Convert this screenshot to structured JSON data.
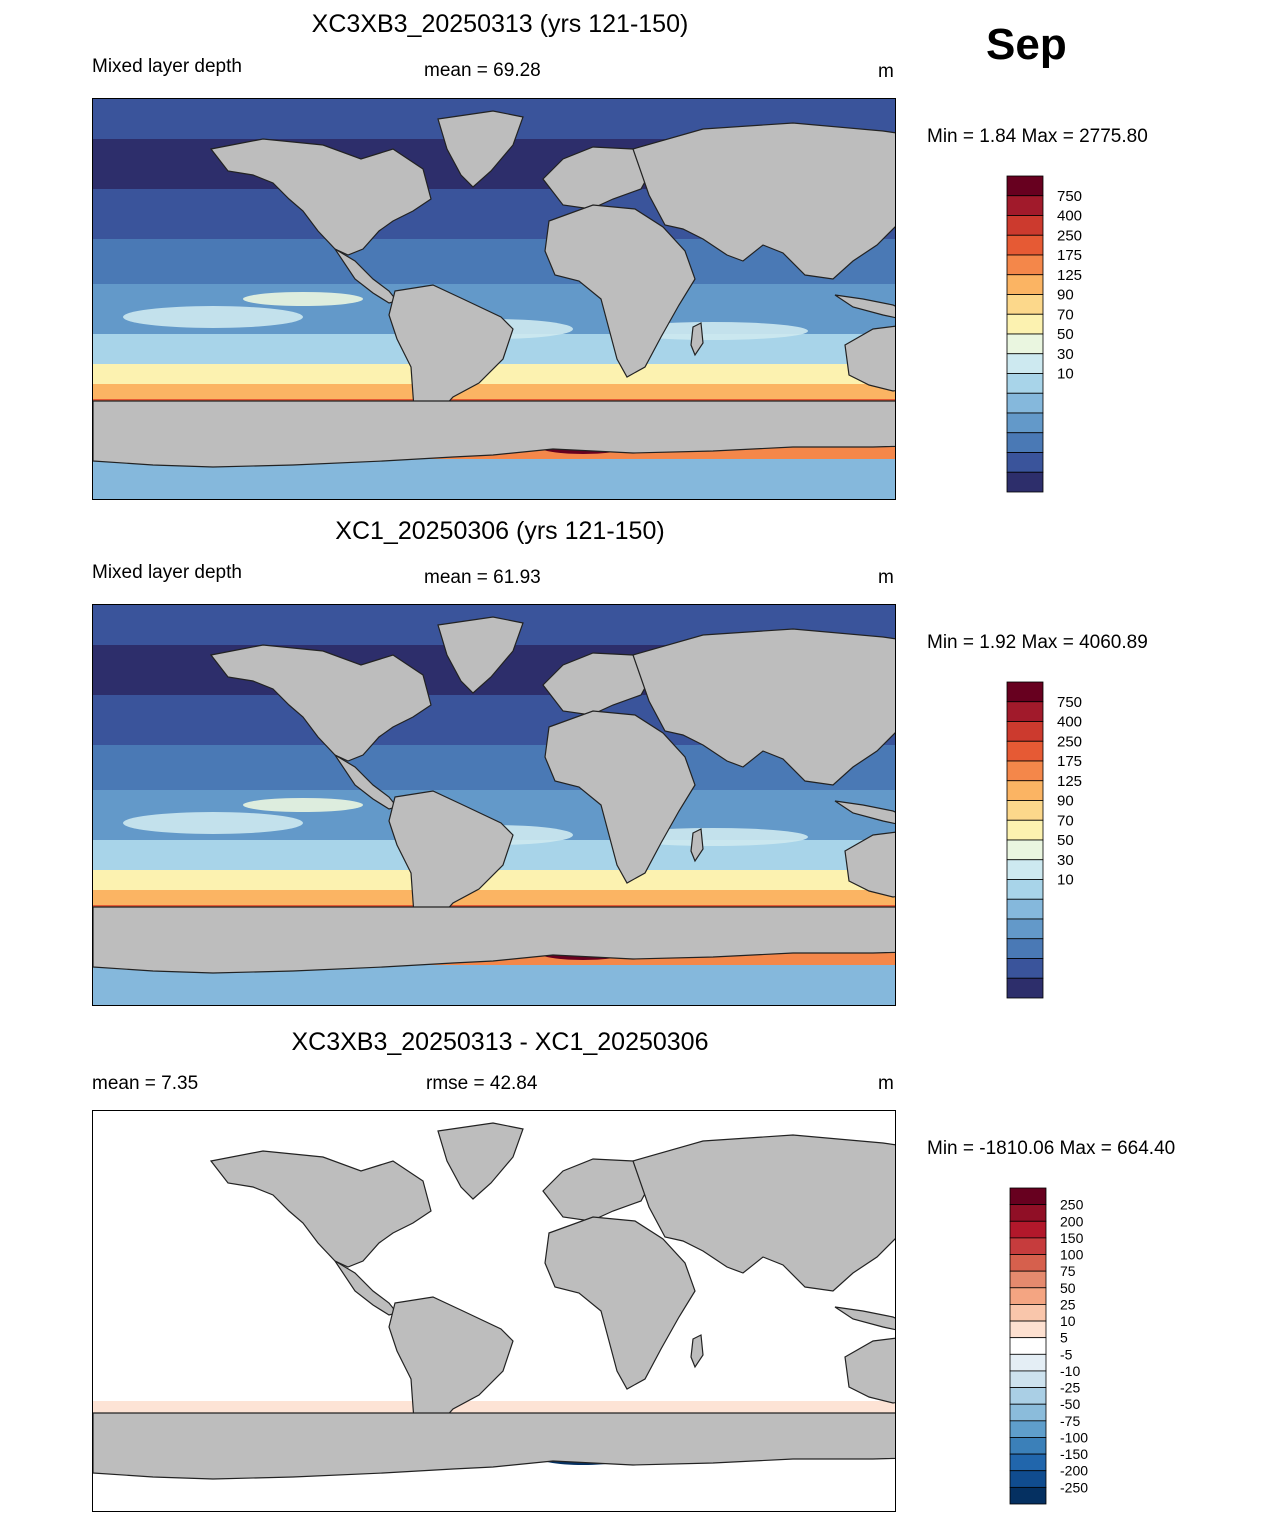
{
  "month": "Sep",
  "panels": [
    {
      "title": "XC3XB3_20250313 (yrs 121-150)",
      "left_label": "Mixed layer depth",
      "center_label": "mean =  69.28",
      "units": "m",
      "minmax": "Min =    1.84 Max = 2775.80",
      "type": "field"
    },
    {
      "title": "XC1_20250306 (yrs 121-150)",
      "left_label": "Mixed layer depth",
      "center_label": "mean =  61.93",
      "units": "m",
      "minmax": "Min =    1.92 Max = 4060.89",
      "type": "field"
    },
    {
      "title": "XC3XB3_20250313 - XC1_20250306",
      "left_label": "mean =    7.35",
      "center_label": "rmse =  42.84",
      "units": "m",
      "minmax": "Min = -1810.06 Max = 664.40",
      "type": "difference"
    }
  ],
  "chart_data": {
    "type": "heatmap",
    "field_colorbar": {
      "labels": [
        "750",
        "400",
        "250",
        "175",
        "125",
        "90",
        "70",
        "50",
        "30",
        "10"
      ],
      "colors": [
        "#67001f",
        "#a11a2b",
        "#cc3a2e",
        "#e65a34",
        "#f4874a",
        "#fbb463",
        "#fcd88b",
        "#fcf2b0",
        "#eaf6e0",
        "#cde9f0",
        "#a8d4e9",
        "#85b8dc",
        "#6399c9",
        "#4a79b5",
        "#3a549b",
        "#2d2e6b"
      ]
    },
    "diff_colorbar": {
      "labels": [
        "250",
        "200",
        "150",
        "100",
        "75",
        "50",
        "25",
        "10",
        "5",
        "-5",
        "-10",
        "-25",
        "-50",
        "-75",
        "-100",
        "-150",
        "-200",
        "-250"
      ],
      "colors": [
        "#67001f",
        "#900f26",
        "#b2182b",
        "#c63c3d",
        "#d6604d",
        "#e58a6e",
        "#f4a582",
        "#f9c6ab",
        "#fde0d0",
        "#ffffff",
        "#e4eef5",
        "#cde2ee",
        "#aacfe5",
        "#8bbcdb",
        "#5f9ecb",
        "#3b80b9",
        "#2166ac",
        "#104c8f",
        "#053061"
      ]
    },
    "land_color": "#bdbdbd"
  }
}
